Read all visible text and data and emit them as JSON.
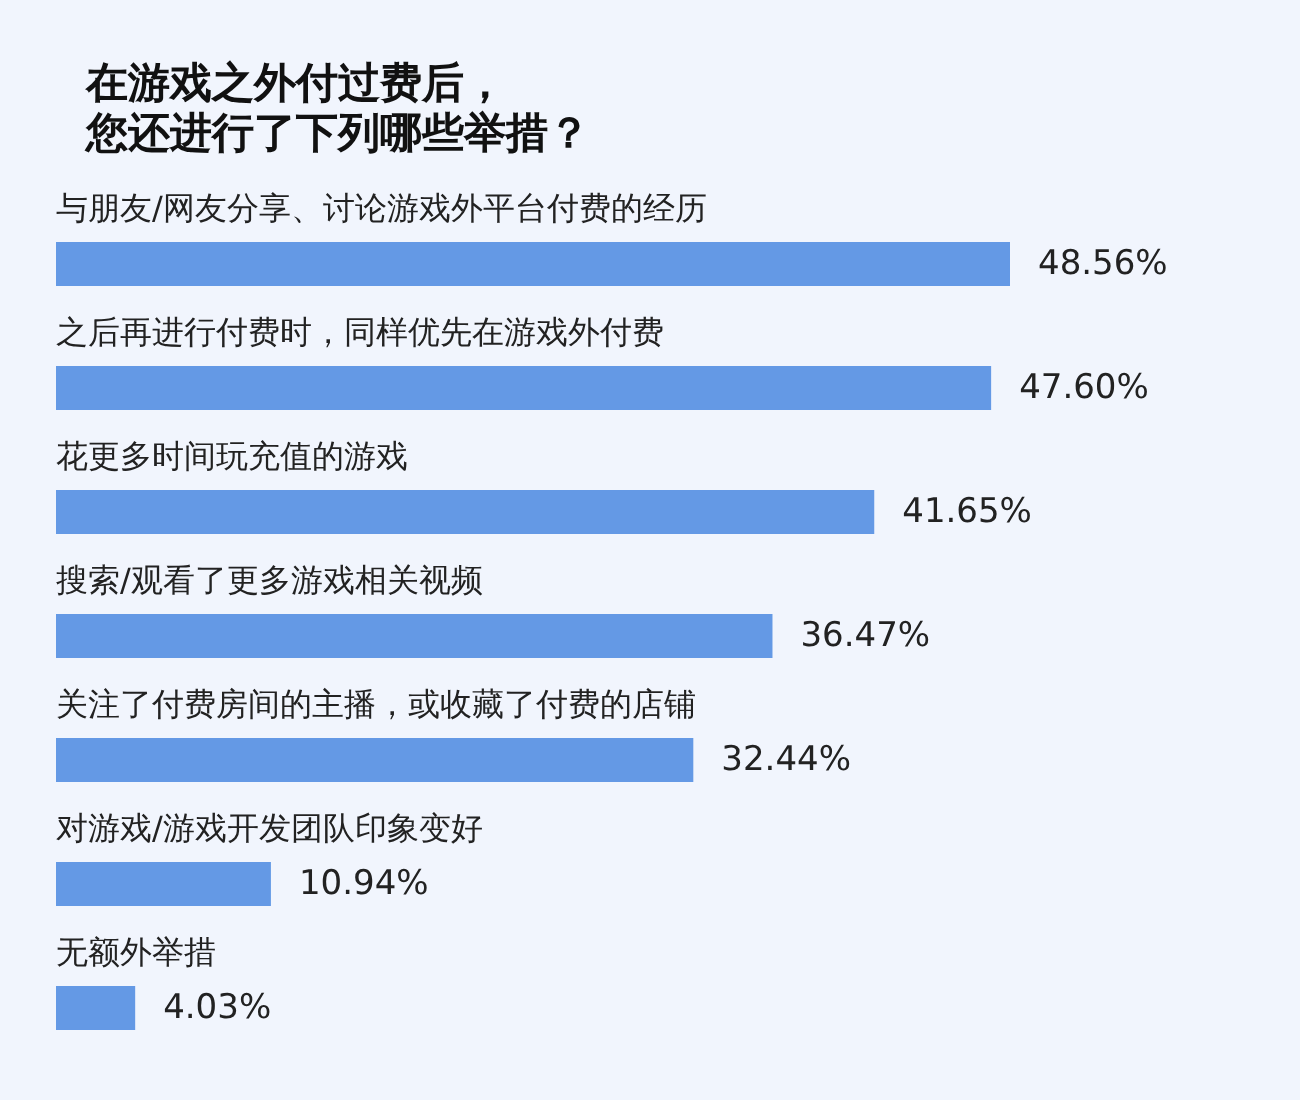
{
  "chart_data": {
    "type": "bar",
    "orientation": "horizontal",
    "title": "在游戏之外付过费后，您还进行了下列哪些举措？",
    "categories": [
      "与朋友/网友分享、讨论游戏外平台付费的经历",
      "之后再进行付费时，同样优先在游戏外付费",
      "花更多时间玩充值的游戏",
      "搜索/观看了更多游戏相关视频",
      "关注了付费房间的主播，或收藏了付费的店铺",
      "对游戏/游戏开发团队印象变好",
      "无额外举措"
    ],
    "values": [
      48.56,
      47.6,
      41.65,
      36.47,
      32.44,
      10.94,
      4.03
    ],
    "value_labels": [
      "48.56%",
      "47.60%",
      "41.65%",
      "36.47%",
      "32.44%",
      "10.94%",
      "4.03%"
    ],
    "color": "#6499e5"
  }
}
